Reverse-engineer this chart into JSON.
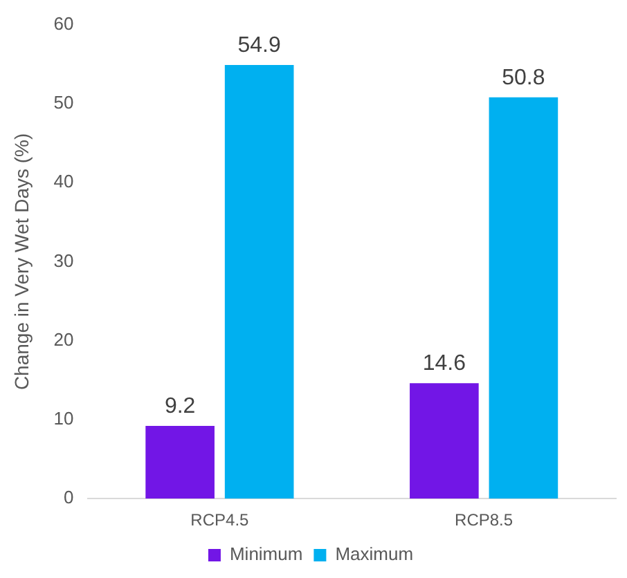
{
  "chart_data": {
    "type": "bar",
    "ylabel": "Change in Very Wet Days (%)",
    "categories": [
      "RCP4.5",
      "RCP8.5"
    ],
    "series": [
      {
        "name": "Minimum",
        "color": "#7216e6",
        "values": [
          9.2,
          14.6
        ]
      },
      {
        "name": "Maximum",
        "color": "#00b0f0",
        "values": [
          54.9,
          50.8
        ]
      }
    ],
    "ylim": [
      0,
      60
    ],
    "yticks": [
      0,
      10,
      20,
      30,
      40,
      50,
      60
    ],
    "grid": false,
    "legend": "bottom",
    "data_labels": true
  }
}
